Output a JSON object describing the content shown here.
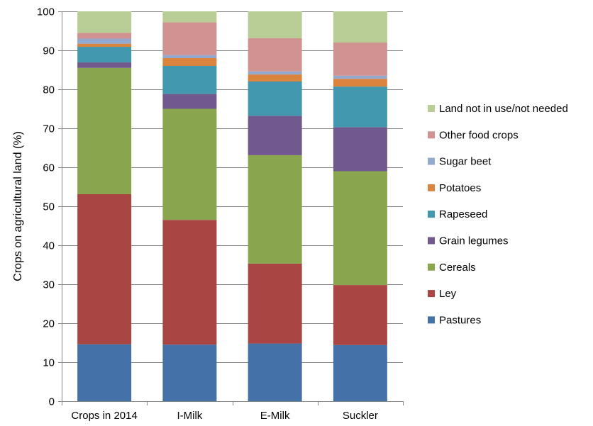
{
  "chart_data": {
    "type": "bar",
    "stacked": true,
    "categories": [
      "Crops in 2014",
      "I-Milk",
      "E-Milk",
      "Suckler"
    ],
    "ylabel": "Crops on agricultural land (%)",
    "xlabel": "",
    "ylim": [
      0,
      100
    ],
    "yticks": [
      0,
      10,
      20,
      30,
      40,
      50,
      60,
      70,
      80,
      90,
      100
    ],
    "grid": "horizontal",
    "legend_position": "right",
    "series": [
      {
        "name": "Pastures",
        "color": "#4472A8",
        "values": [
          14.6,
          14.5,
          14.8,
          14.4
        ]
      },
      {
        "name": "Ley",
        "color": "#A94543",
        "values": [
          38.5,
          32.0,
          20.5,
          15.4
        ]
      },
      {
        "name": "Cereals",
        "color": "#89A54E",
        "values": [
          32.4,
          28.5,
          27.8,
          29.2
        ]
      },
      {
        "name": "Grain legumes",
        "color": "#71598E",
        "values": [
          1.4,
          3.8,
          10.1,
          11.3
        ]
      },
      {
        "name": "Rapeseed",
        "color": "#4298AE",
        "values": [
          4.0,
          7.2,
          8.8,
          10.4
        ]
      },
      {
        "name": "Potatoes",
        "color": "#DB843D",
        "values": [
          0.8,
          2.0,
          1.8,
          2.0
        ]
      },
      {
        "name": "Sugar beet",
        "color": "#93A9CF",
        "values": [
          1.3,
          0.8,
          0.8,
          0.8
        ]
      },
      {
        "name": "Other food crops",
        "color": "#D19392",
        "values": [
          1.5,
          8.4,
          8.5,
          8.5
        ]
      },
      {
        "name": "Land not in use/not needed",
        "color": "#B9CD96",
        "values": [
          5.5,
          2.8,
          6.9,
          8.0
        ]
      }
    ]
  }
}
